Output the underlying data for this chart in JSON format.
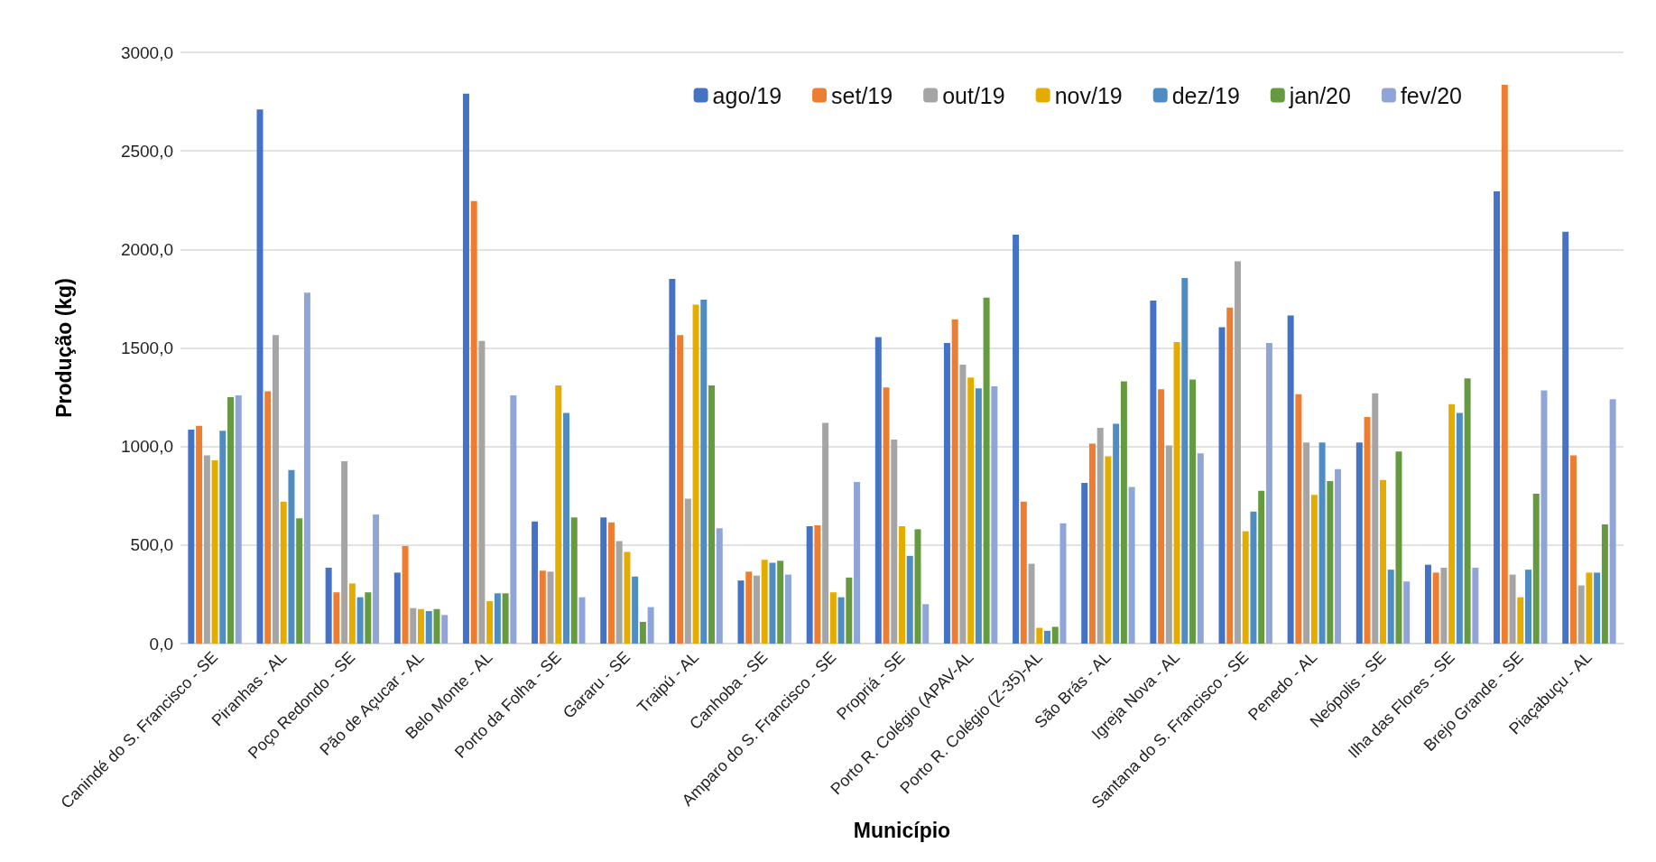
{
  "chart_data": {
    "type": "bar",
    "xlabel": "Município",
    "ylabel": "Produção (kg)",
    "categories": [
      "Canindé do S. Francisco - SE",
      "Piranhas - AL",
      "Poço Redondo - SE",
      "Pão de Açucar - AL",
      "Belo Monte - AL",
      "Porto da Folha - SE",
      "Gararu - SE",
      "Traipú - AL",
      "Canhoba - SE",
      "Amparo do S. Francisco - SE",
      "Propriá - SE",
      "Porto R. Colégio (APAV-AL",
      "Porto R. Colégio (Z-35)-AL",
      "São Brás - AL",
      "Igreja Nova - AL",
      "Santana do S. Francisco - SE",
      "Penedo - AL",
      "Neópolis - SE",
      "Ilha das Flores - SE",
      "Brejo Grande - SE",
      "Piaçabuçu - AL"
    ],
    "series": [
      {
        "name": "ago/19",
        "color": "#4472c4",
        "values": [
          1085,
          2710,
          385,
          360,
          2790,
          620,
          640,
          1850,
          320,
          595,
          1555,
          1525,
          2075,
          815,
          1740,
          1605,
          1665,
          1020,
          400,
          2295,
          2090
        ]
      },
      {
        "name": "set/19",
        "color": "#ed7d31",
        "values": [
          1105,
          1280,
          260,
          495,
          2245,
          370,
          615,
          1565,
          365,
          600,
          1300,
          1645,
          720,
          1015,
          1290,
          1705,
          1265,
          1150,
          360,
          2835,
          955
        ]
      },
      {
        "name": "out/19",
        "color": "#a5a5a5",
        "values": [
          955,
          1565,
          925,
          180,
          1535,
          365,
          520,
          735,
          345,
          1120,
          1035,
          1415,
          405,
          1095,
          1005,
          1940,
          1020,
          1270,
          385,
          350,
          295
        ]
      },
      {
        "name": "nov/19",
        "color": "#e5ac00",
        "values": [
          930,
          720,
          305,
          175,
          215,
          1310,
          465,
          1720,
          425,
          260,
          595,
          1350,
          80,
          950,
          1530,
          570,
          755,
          830,
          1215,
          235,
          360
        ]
      },
      {
        "name": "dez/19",
        "color": "#4e8cc2",
        "values": [
          1080,
          880,
          235,
          165,
          255,
          1170,
          340,
          1745,
          410,
          235,
          445,
          1295,
          65,
          1115,
          1855,
          670,
          1020,
          375,
          1170,
          375,
          360
        ]
      },
      {
        "name": "jan/20",
        "color": "#659a41",
        "values": [
          1250,
          635,
          260,
          175,
          255,
          640,
          110,
          1310,
          420,
          335,
          580,
          1755,
          85,
          1330,
          1340,
          775,
          825,
          975,
          1345,
          760,
          605
        ]
      },
      {
        "name": "fev/20",
        "color": "#8fa5d8",
        "values": [
          1260,
          1780,
          655,
          145,
          1260,
          235,
          185,
          585,
          350,
          820,
          200,
          1305,
          610,
          795,
          965,
          1525,
          885,
          315,
          385,
          1285,
          1240
        ]
      }
    ],
    "ylim": [
      0,
      3000
    ],
    "yticks": [
      {
        "value": 0,
        "label": "0,0"
      },
      {
        "value": 500,
        "label": "500,0"
      },
      {
        "value": 1000,
        "label": "1000,0"
      },
      {
        "value": 1500,
        "label": "1500,0"
      },
      {
        "value": 2000,
        "label": "2000,0"
      },
      {
        "value": 2500,
        "label": "2500,0"
      },
      {
        "value": 3000,
        "label": "3000,0"
      }
    ],
    "grid": "y",
    "legend": "top right"
  }
}
